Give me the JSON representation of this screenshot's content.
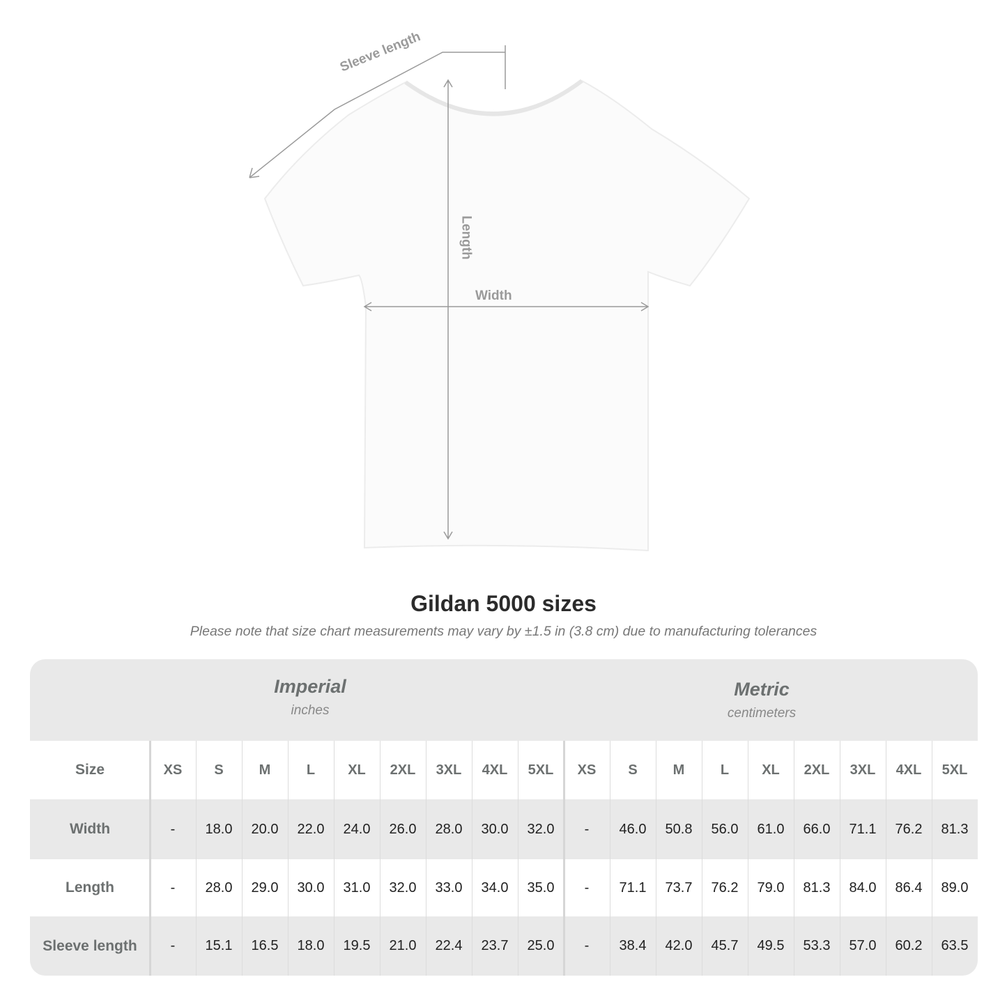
{
  "diagram": {
    "labels": {
      "sleeve": "Sleeve length",
      "length": "Length",
      "width": "Width"
    }
  },
  "title": "Gildan 5000 sizes",
  "note": "Please note that size chart measurements may vary by ±1.5 in (3.8 cm) due to manufacturing tolerances",
  "table": {
    "imperial": {
      "name": "Imperial",
      "unit": "inches"
    },
    "metric": {
      "name": "Metric",
      "unit": "centimeters"
    },
    "size_label": "Size",
    "sizes": [
      "XS",
      "S",
      "M",
      "L",
      "XL",
      "2XL",
      "3XL",
      "4XL",
      "5XL"
    ],
    "rows": [
      {
        "label": "Width",
        "imperial": [
          "-",
          "18.0",
          "20.0",
          "22.0",
          "24.0",
          "26.0",
          "28.0",
          "30.0",
          "32.0"
        ],
        "metric": [
          "-",
          "46.0",
          "50.8",
          "56.0",
          "61.0",
          "66.0",
          "71.1",
          "76.2",
          "81.3"
        ]
      },
      {
        "label": "Length",
        "imperial": [
          "-",
          "28.0",
          "29.0",
          "30.0",
          "31.0",
          "32.0",
          "33.0",
          "34.0",
          "35.0"
        ],
        "metric": [
          "-",
          "71.1",
          "73.7",
          "76.2",
          "79.0",
          "81.3",
          "84.0",
          "86.4",
          "89.0"
        ]
      },
      {
        "label": "Sleeve length",
        "imperial": [
          "-",
          "15.1",
          "16.5",
          "18.0",
          "19.5",
          "21.0",
          "22.4",
          "23.7",
          "25.0"
        ],
        "metric": [
          "-",
          "38.4",
          "42.0",
          "45.7",
          "49.5",
          "53.3",
          "57.0",
          "60.2",
          "63.5"
        ]
      }
    ]
  },
  "colors": {
    "band": "#e9e9e9",
    "header_text": "#6c7070",
    "annotation": "#9a9a9a"
  }
}
